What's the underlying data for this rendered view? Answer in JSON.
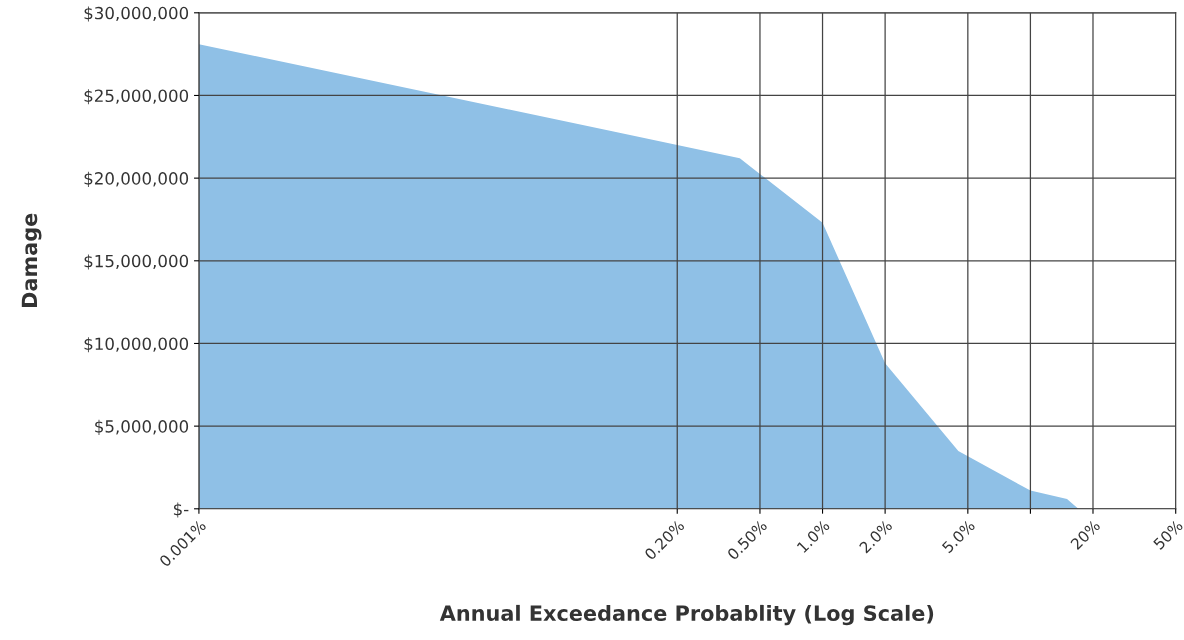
{
  "chart_data": {
    "type": "area",
    "xlabel": "Annual Exceedance Probablity (Log Scale)",
    "ylabel": "Damage",
    "log": "x",
    "grid": true,
    "x": [
      0.001,
      0.1,
      0.4,
      1,
      2,
      4.5,
      10,
      15,
      17
    ],
    "series": [
      {
        "color": "#8fc0e6",
        "values": [
          28100000,
          22800000,
          21200000,
          17300000,
          8800000,
          3500000,
          1100000,
          600000,
          0
        ]
      }
    ],
    "xlim": [
      0.001,
      50
    ],
    "xticks": [
      {
        "value": 0.001,
        "label": "0.001%"
      },
      {
        "value": 0.2,
        "label": "0.20%"
      },
      {
        "value": 0.5,
        "label": "0.50%"
      },
      {
        "value": 1,
        "label": "1.0%"
      },
      {
        "value": 2,
        "label": "2.0%"
      },
      {
        "value": 5,
        "label": "5.0%"
      },
      {
        "value": 10,
        "label": null
      },
      {
        "value": 20,
        "label": "20%"
      },
      {
        "value": 50,
        "label": "50%"
      }
    ],
    "ylim": [
      0,
      30000000
    ],
    "yticks": [
      {
        "value": 0,
        "label": "$-"
      },
      {
        "value": 5000000,
        "label": "$5,000,000"
      },
      {
        "value": 10000000,
        "label": "$10,000,000"
      },
      {
        "value": 15000000,
        "label": "$15,000,000"
      },
      {
        "value": 20000000,
        "label": "$20,000,000"
      },
      {
        "value": 25000000,
        "label": "$25,000,000"
      },
      {
        "value": 30000000,
        "label": "$30,000,000"
      }
    ]
  }
}
